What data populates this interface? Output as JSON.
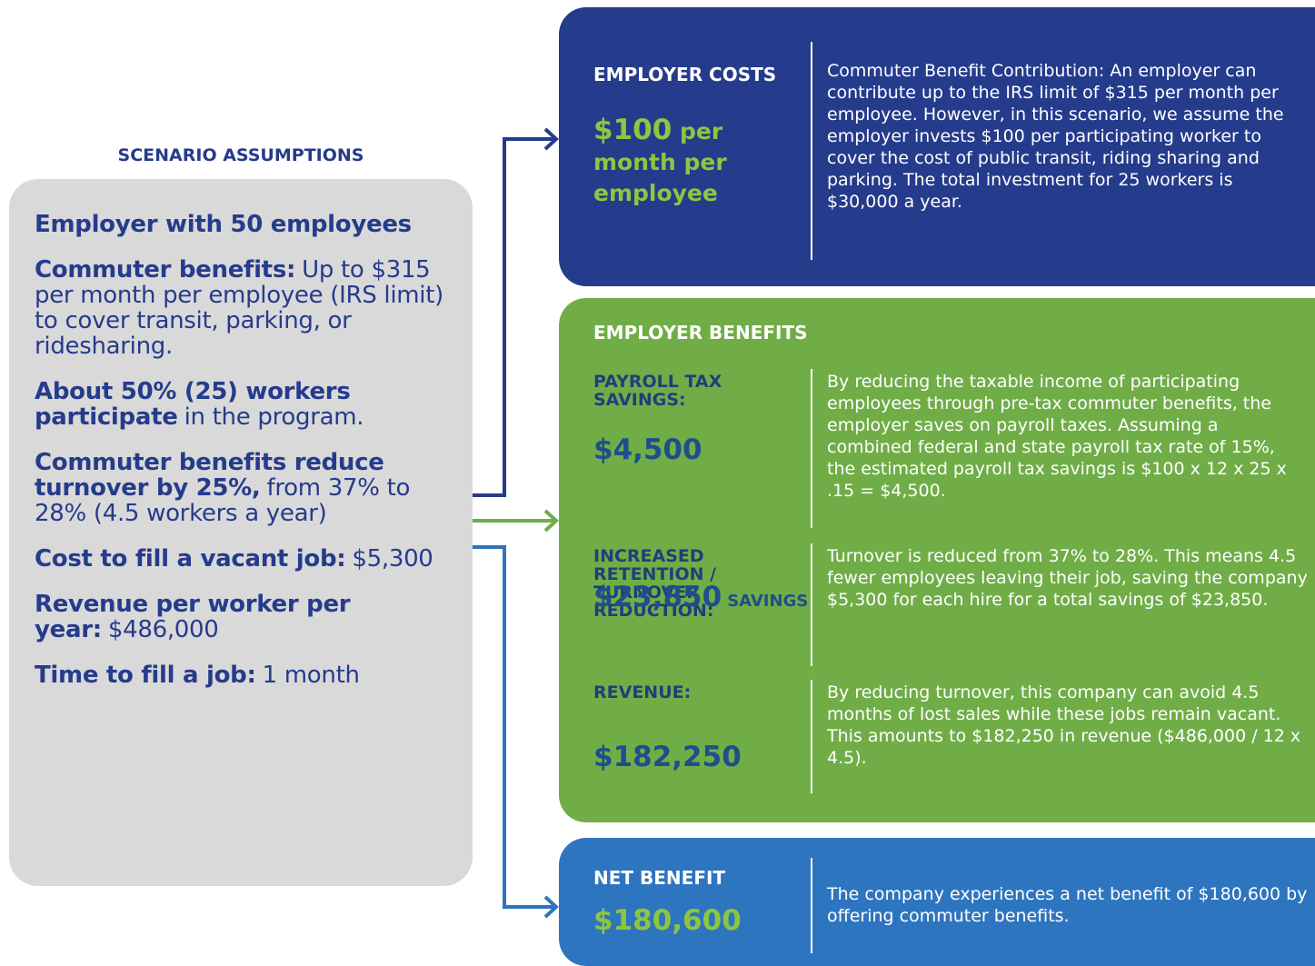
{
  "assumptions": {
    "heading": "SCENARIO ASSUMPTIONS",
    "items": [
      {
        "bold": "Employer with 50 employees"
      },
      {
        "bold": "Commuter benefits:",
        "regular": "Up to $315 per month per employee (IRS limit) to cover transit, parking, or ridesharing."
      },
      {
        "bold": "About 50% (25) workers participate",
        "regular": "in the program."
      },
      {
        "bold": "Commuter benefits reduce turnover by 25%,",
        "regular": "from 37% to 28% (4.5 workers a year)"
      },
      {
        "bold": "Cost to fill a vacant job:",
        "regular": "$5,300"
      },
      {
        "bold": "Revenue per worker per year:",
        "regular": "$486,000"
      },
      {
        "bold": "Time to fill a job:",
        "regular": "1 month"
      }
    ]
  },
  "costs": {
    "title": "EMPLOYER COSTS",
    "amount": "$100",
    "amount_suffix": "per month per employee",
    "description": "Commuter Benefit Contribution: An employer can contribute up to the IRS limit of $315 per month per employee. However, in this scenario, we assume the employer invests $100 per participating worker to cover the cost of public transit, riding sharing and parking. The total investment for 25 workers is $30,000 a year."
  },
  "benefits": {
    "title": "EMPLOYER BENEFITS",
    "rows": [
      {
        "label": "PAYROLL TAX SAVINGS:",
        "amount": "$4,500",
        "description": "By reducing the taxable income of participating employees through pre-tax commuter benefits, the employer saves on payroll taxes. Assuming a combined federal and state payroll tax rate of 15%, the estimated payroll tax savings is $100 x 12 x 25 x .15 = $4,500."
      },
      {
        "label": "INCREASED RETENTION / TURNOVER REDUCTION:",
        "amount": "$23,850",
        "amount_suffix": "SAVINGS",
        "description": "Turnover is reduced from 37% to 28%. This means 4.5 fewer employees leaving their job, saving the company $5,300 for each hire for a total savings of $23,850."
      },
      {
        "label": "REVENUE:",
        "amount": "$182,250",
        "description": "By reducing turnover, this company can avoid 4.5 months of lost sales while these jobs remain vacant. This amounts to $182,250 in revenue ($486,000 / 12 x 4.5)."
      }
    ]
  },
  "net": {
    "title": "NET BENEFIT",
    "amount": "$180,600",
    "description": "The company experiences a net benefit of $180,600 by offering commuter benefits."
  }
}
